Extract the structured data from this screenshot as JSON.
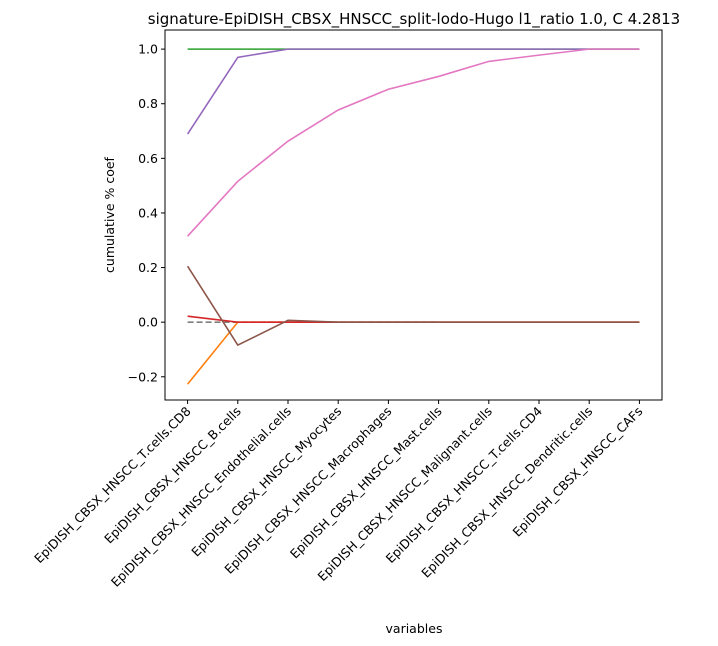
{
  "chart_data": {
    "type": "line",
    "title": "signature-EpiDISH_CBSX_HNSCC_split-lodo-Hugo l1_ratio 1.0, C 4.2813",
    "xlabel": "variables",
    "ylabel": "cumulative % coef",
    "categories": [
      "EpiDISH_CBSX_HNSCC_T.cells.CD8",
      "EpiDISH_CBSX_HNSCC_B.cells",
      "EpiDISH_CBSX_HNSCC_Endothelial.cells",
      "EpiDISH_CBSX_HNSCC_Myocytes",
      "EpiDISH_CBSX_HNSCC_Macrophages",
      "EpiDISH_CBSX_HNSCC_Mast.cells",
      "EpiDISH_CBSX_HNSCC_Malignant.cells",
      "EpiDISH_CBSX_HNSCC_T.cells.CD4",
      "EpiDISH_CBSX_HNSCC_Dendritic.cells",
      "EpiDISH_CBSX_HNSCC_CAFs"
    ],
    "series": [
      {
        "color": "#7f7f7f",
        "dashed": true,
        "values": [
          0,
          0,
          0,
          0,
          0,
          0,
          null,
          null,
          null,
          null
        ]
      },
      {
        "color": "#ff7f0e",
        "values": [
          -0.227,
          0,
          0,
          0,
          0,
          0,
          0,
          0,
          0,
          0
        ]
      },
      {
        "color": "#2ca02c",
        "values": [
          1,
          1,
          1,
          1,
          1,
          1,
          1,
          1,
          1,
          1
        ]
      },
      {
        "color": "#d62728",
        "values": [
          0.022,
          0,
          0,
          0,
          0,
          0,
          0,
          0,
          0,
          0
        ]
      },
      {
        "color": "#9467bd",
        "values": [
          0.689,
          0.97,
          1,
          1,
          1,
          1,
          1,
          1,
          1,
          1
        ]
      },
      {
        "color": "#e377c2",
        "values": [
          0.315,
          0.516,
          0.663,
          0.777,
          0.853,
          0.9,
          0.955,
          0.978,
          1,
          1
        ]
      },
      {
        "color": "#8c564b",
        "values": [
          0.205,
          -0.084,
          0.007,
          0,
          0,
          0,
          0,
          0,
          0,
          0
        ]
      }
    ],
    "xlim": [
      -0.45,
      9.45
    ],
    "ylim": [
      -0.285,
      1.07
    ],
    "yticks": [
      {
        "value": -0.2,
        "label": "−0.2"
      },
      {
        "value": 0,
        "label": "0.0"
      },
      {
        "value": 0.2,
        "label": "0.2"
      },
      {
        "value": 0.4,
        "label": "0.4"
      },
      {
        "value": 0.6,
        "label": "0.6"
      },
      {
        "value": 0.8,
        "label": "0.8"
      },
      {
        "value": 1,
        "label": "1.0"
      }
    ],
    "grid": false
  }
}
